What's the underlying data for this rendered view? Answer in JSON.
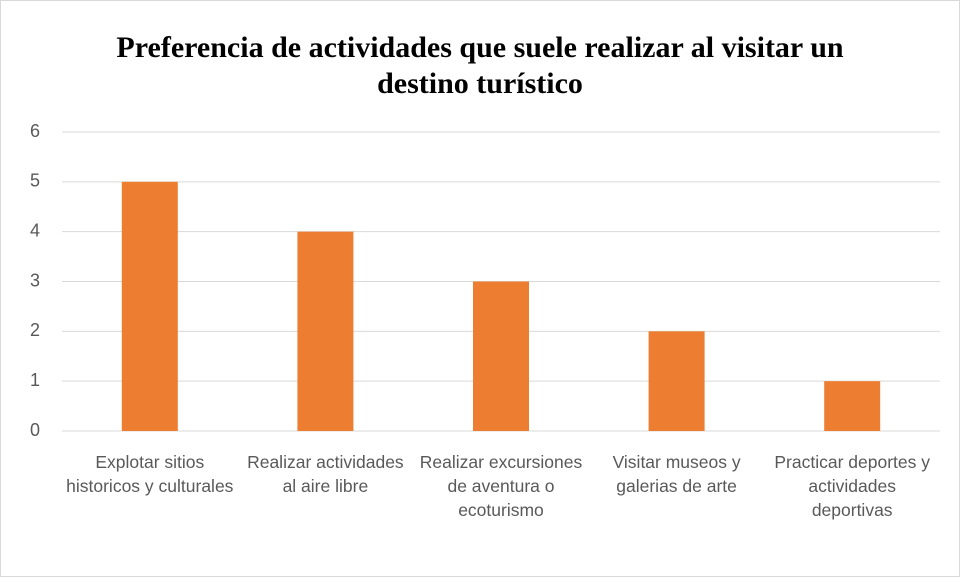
{
  "chart_data": {
    "type": "bar",
    "title": "Preferencia de actividades que suele realizar al visitar un destino turístico",
    "categories": [
      "Explotar sitios historicos y culturales",
      "Realizar actividades al aire libre",
      "Realizar excursiones de aventura o ecoturismo",
      "Visitar museos y galerias de arte",
      "Practicar deportes y actividades deportivas"
    ],
    "values": [
      5,
      4,
      3,
      2,
      1
    ],
    "color": "#ed7d31",
    "ylim": [
      0,
      6
    ],
    "yticks": [
      0,
      1,
      2,
      3,
      4,
      5,
      6
    ],
    "grid": true
  }
}
